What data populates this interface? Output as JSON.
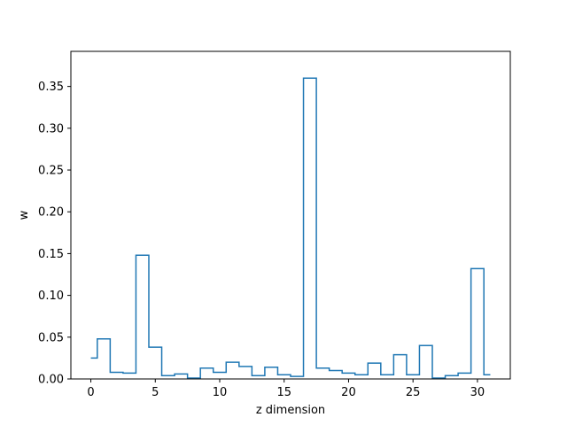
{
  "chart_data": {
    "type": "step",
    "title": "",
    "xlabel": "z dimension",
    "ylabel": "w",
    "xlim": [
      -1.55,
      32.55
    ],
    "ylim": [
      0,
      0.392
    ],
    "step_where": "mid",
    "x": [
      0,
      1,
      2,
      3,
      4,
      5,
      6,
      7,
      8,
      9,
      10,
      11,
      12,
      13,
      14,
      15,
      16,
      17,
      18,
      19,
      20,
      21,
      22,
      23,
      24,
      25,
      26,
      27,
      28,
      29,
      30,
      31
    ],
    "values": [
      0.025,
      0.048,
      0.008,
      0.007,
      0.148,
      0.038,
      0.004,
      0.006,
      0.001,
      0.013,
      0.008,
      0.02,
      0.015,
      0.004,
      0.014,
      0.005,
      0.003,
      0.36,
      0.013,
      0.01,
      0.007,
      0.005,
      0.019,
      0.005,
      0.029,
      0.005,
      0.04,
      0.001,
      0.004,
      0.007,
      0.132,
      0.005
    ],
    "xticks": [
      0,
      5,
      10,
      15,
      20,
      25,
      30
    ],
    "xtick_labels": [
      "0",
      "5",
      "10",
      "15",
      "20",
      "25",
      "30"
    ],
    "yticks": [
      0,
      0.05,
      0.1,
      0.15,
      0.2,
      0.25,
      0.3,
      0.35
    ],
    "ytick_labels": [
      "0.00",
      "0.05",
      "0.10",
      "0.15",
      "0.20",
      "0.25",
      "0.30",
      "0.35"
    ],
    "grid": false,
    "line_color": "#1f77b4"
  }
}
